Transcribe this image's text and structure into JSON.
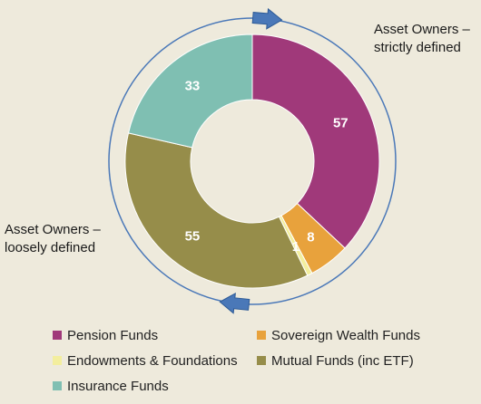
{
  "chart_data": {
    "type": "donut",
    "title": "",
    "categories": [
      "Pension Funds",
      "Sovereign Wealth Funds",
      "Endowments & Foundations",
      "Mutual Funds (inc ETF)",
      "Insurance Funds"
    ],
    "values": [
      57,
      8,
      1,
      55,
      33
    ],
    "colors": [
      "#a0397a",
      "#e8a23c",
      "#f3ee9e",
      "#968d4a",
      "#7fbfb2"
    ],
    "data_labels": [
      "57",
      "8",
      "1",
      "55",
      "33"
    ],
    "legend_position": "bottom",
    "annotations": [
      {
        "lines": [
          "Asset Owners –",
          "strictly defined"
        ]
      },
      {
        "lines": [
          "Asset Owners –",
          "loosely defined"
        ]
      }
    ],
    "arrow_color": "#4a78b8"
  }
}
